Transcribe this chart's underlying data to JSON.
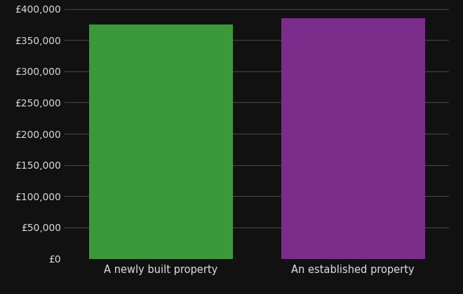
{
  "categories": [
    "A newly built property",
    "An established property"
  ],
  "values": [
    375000,
    385000
  ],
  "bar_colors": [
    "#3a9a3a",
    "#7b2d8b"
  ],
  "background_color": "#111111",
  "text_color": "#dddddd",
  "grid_color": "#555555",
  "ylim": [
    0,
    400000
  ],
  "yticks": [
    0,
    50000,
    100000,
    150000,
    200000,
    250000,
    300000,
    350000,
    400000
  ],
  "bar_width": 0.75,
  "figsize": [
    6.6,
    4.2
  ],
  "dpi": 100
}
